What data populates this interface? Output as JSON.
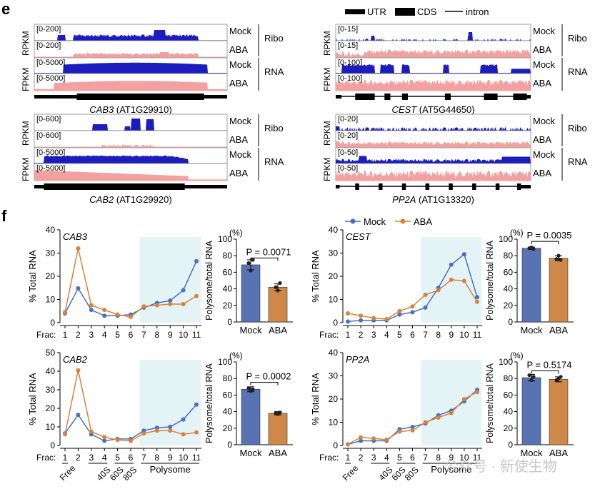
{
  "panel_e": {
    "label": "e",
    "legend": {
      "utr": "UTR",
      "cds": "CDS",
      "intron": "intron"
    },
    "colors": {
      "mock": "#1d1dbf",
      "aba": "#f2a0a0"
    },
    "genes": [
      {
        "id": "cab3",
        "italic": "CAB3",
        "locus": " (AT1G29910)",
        "ribo_mock": "[0-200]",
        "ribo_aba": "[0-200]",
        "rna_mock": "[0-5000]",
        "rna_aba": "[0-5000]"
      },
      {
        "id": "cest",
        "italic": "CEST",
        "locus": " (AT5G44650)",
        "ribo_mock": "[0-15]",
        "ribo_aba": "[0-15]",
        "rna_mock": "[0-100]",
        "rna_aba": "[0-100]"
      },
      {
        "id": "cab2",
        "italic": "CAB2",
        "locus": " (AT1G29920)",
        "ribo_mock": "[0-600]",
        "ribo_aba": "[0-600]",
        "rna_mock": "[0-5000]",
        "rna_aba": "[0-5000]"
      },
      {
        "id": "pp2a",
        "italic": "PP2A",
        "locus": " (AT1G13320)",
        "ribo_mock": "[0-20]",
        "ribo_aba": "[0-20]",
        "rna_mock": "[0-50]",
        "rna_aba": "[0-50]"
      }
    ],
    "labels": {
      "rpkm": "RPKM",
      "fpkm": "FPKM",
      "mock": "Mock",
      "aba": "ABA",
      "ribo": "Ribo",
      "rna": "RNA"
    }
  },
  "panel_f": {
    "label": "f",
    "legend": {
      "mock": "Mock",
      "aba": "ABA"
    },
    "colors": {
      "mock": "#4a6fc4",
      "aba": "#d9823c",
      "mock_bar": "#5873b4",
      "aba_bar": "#cf8848",
      "shade": "#e4f3f5"
    },
    "frac_label": "Frac:",
    "fraction_names": [
      "Free",
      "40S",
      "60S",
      "80S",
      "Polysome"
    ],
    "bar_ylabel": "Polysome/total RNA",
    "line_ylabel": "% Total RNA",
    "percent_label": "(%)",
    "watermark": "公众号 · 新使生物"
  },
  "chart_data": [
    {
      "type": "line",
      "title": "CAB3",
      "xlabel": "Frac:",
      "ylabel": "% Total RNA",
      "x": [
        1,
        2,
        3,
        4,
        5,
        6,
        7,
        8,
        9,
        10,
        11
      ],
      "ylim": [
        0,
        40
      ],
      "yticks": [
        0,
        10,
        20,
        30,
        40
      ],
      "series": [
        {
          "name": "Mock",
          "values": [
            4,
            14.8,
            5.5,
            3,
            3,
            3.5,
            6.5,
            8.5,
            9.5,
            14,
            26.5
          ]
        },
        {
          "name": "ABA",
          "values": [
            4.5,
            32,
            7.5,
            5.5,
            3.5,
            2.5,
            7,
            7.5,
            8,
            8,
            11.5
          ]
        }
      ]
    },
    {
      "type": "bar",
      "ylabel": "Polysome/total RNA",
      "categories": [
        "Mock",
        "ABA"
      ],
      "values": [
        69,
        42
      ],
      "ylim": [
        0,
        100
      ],
      "yticks": [
        0,
        20,
        40,
        60,
        80,
        100
      ],
      "annotation": "P = 0.0071"
    },
    {
      "type": "line",
      "title": "CEST",
      "xlabel": "Frac:",
      "ylabel": "% Total RNA",
      "x": [
        1,
        2,
        3,
        4,
        5,
        6,
        7,
        8,
        9,
        10,
        11
      ],
      "ylim": [
        0,
        40
      ],
      "yticks": [
        0,
        10,
        20,
        30,
        40
      ],
      "series": [
        {
          "name": "Mock",
          "values": [
            0.5,
            1,
            1,
            1,
            3.5,
            4.5,
            6.5,
            15,
            25,
            29.5,
            11
          ]
        },
        {
          "name": "ABA",
          "values": [
            4,
            3,
            2,
            1.5,
            5,
            7,
            12,
            14,
            18.5,
            18,
            9
          ]
        }
      ]
    },
    {
      "type": "bar",
      "ylabel": "Polysome/total RNA",
      "categories": [
        "Mock",
        "ABA"
      ],
      "values": [
        89,
        77
      ],
      "ylim": [
        0,
        100
      ],
      "yticks": [
        0,
        20,
        40,
        60,
        80,
        100
      ],
      "annotation": "P = 0.0035"
    },
    {
      "type": "line",
      "title": "CAB2",
      "xlabel": "Frac:",
      "ylabel": "% Total RNA",
      "x": [
        1,
        2,
        3,
        4,
        5,
        6,
        7,
        8,
        9,
        10,
        11
      ],
      "ylim": [
        0,
        50
      ],
      "yticks": [
        0,
        10,
        20,
        30,
        40,
        50
      ],
      "series": [
        {
          "name": "Mock",
          "values": [
            6.5,
            16.5,
            6,
            2.5,
            3.5,
            3.5,
            8,
            9.5,
            10,
            14,
            22
          ]
        },
        {
          "name": "ABA",
          "values": [
            6,
            40.5,
            7.5,
            4.5,
            3,
            2.5,
            6.5,
            8,
            8,
            6,
            7
          ]
        }
      ]
    },
    {
      "type": "bar",
      "ylabel": "Polysome/total RNA",
      "categories": [
        "Mock",
        "ABA"
      ],
      "values": [
        67,
        38
      ],
      "ylim": [
        0,
        100
      ],
      "yticks": [
        0,
        20,
        40,
        60,
        80,
        100
      ],
      "annotation": "P = 0.0002"
    },
    {
      "type": "line",
      "title": "PP2A",
      "xlabel": "Frac:",
      "ylabel": "% Total RNA",
      "x": [
        1,
        2,
        3,
        4,
        5,
        6,
        7,
        8,
        9,
        10,
        11
      ],
      "ylim": [
        0,
        40
      ],
      "yticks": [
        0,
        10,
        20,
        30,
        40
      ],
      "series": [
        {
          "name": "Mock",
          "values": [
            0.5,
            2,
            2,
            2,
            7,
            8,
            9.5,
            13,
            15,
            19,
            24
          ]
        },
        {
          "name": "ABA",
          "values": [
            0.5,
            3.5,
            3,
            2.5,
            6,
            6.5,
            10,
            12,
            14,
            20,
            23
          ]
        }
      ]
    },
    {
      "type": "bar",
      "ylabel": "Polysome/total RNA",
      "categories": [
        "Mock",
        "ABA"
      ],
      "values": [
        81,
        79
      ],
      "ylim": [
        0,
        100
      ],
      "yticks": [
        0,
        20,
        40,
        60,
        80,
        100
      ],
      "annotation": "P = 0.5174"
    }
  ]
}
